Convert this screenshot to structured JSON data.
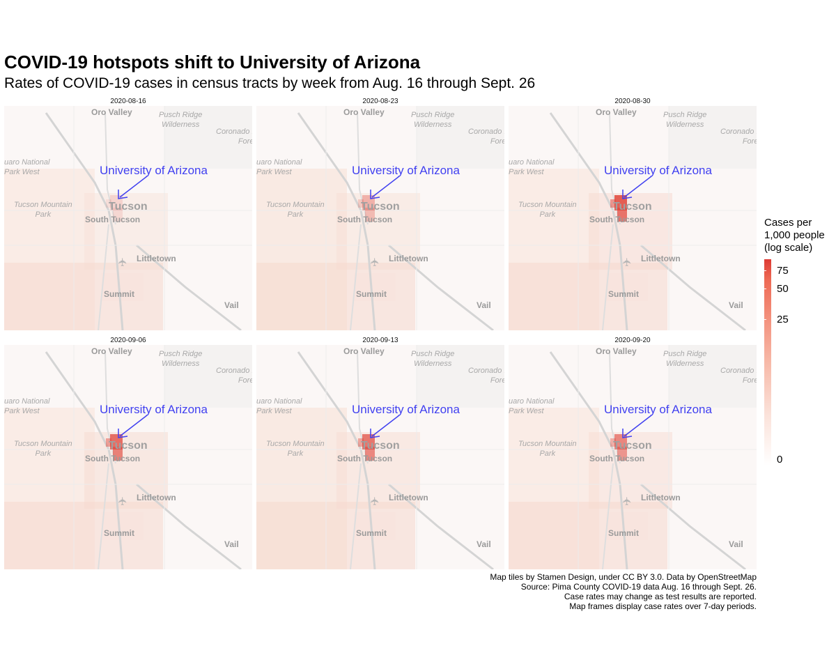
{
  "title": "COVID-19 hotspots shift to University of Arizona",
  "subtitle": "Rates of COVID-19 cases in census tracts by week from Aug. 16 through Sept. 26",
  "panels": [
    {
      "date": "2020-08-16",
      "hotspot_level": 0.15
    },
    {
      "date": "2020-08-23",
      "hotspot_level": 0.35
    },
    {
      "date": "2020-08-30",
      "hotspot_level": 0.85
    },
    {
      "date": "2020-09-06",
      "hotspot_level": 0.75
    },
    {
      "date": "2020-09-13",
      "hotspot_level": 0.7
    },
    {
      "date": "2020-09-20",
      "hotspot_level": 0.6
    }
  ],
  "map_labels": {
    "oro_valley": "Oro Valley",
    "pusch_ridge": "Pusch Ridge\nWilderness",
    "coronado": "Coronado I\nFore",
    "saguaro": "uaro National\nPark West",
    "tucson_mountain": "Tucson Mountain\nPark",
    "tucson": "Tucson",
    "south_tucson": "South Tucson",
    "littletown": "Littletown",
    "summit": "Summit",
    "vail": "Vail",
    "university": "University of Arizona",
    "airport_icon": "airplane-icon"
  },
  "legend": {
    "title": "Cases per\n1,000 people\n(log scale)",
    "ticks": [
      "75",
      "50",
      "25",
      "0"
    ],
    "color_high": "#dd3b34",
    "color_low": "#ffffff"
  },
  "caption": {
    "line1": "Map tiles by Stamen Design, under CC BY 3.0. Data by OpenStreetMap",
    "line2": "Source: Pima County COVID-19 data Aug. 16 through Sept. 26.",
    "line3": "Case rates may change as test results are reported.",
    "line4": "Map frames display case rates over 7-day periods."
  },
  "colors": {
    "annotation": "#4040f0",
    "hotspot": "#e0453a"
  }
}
